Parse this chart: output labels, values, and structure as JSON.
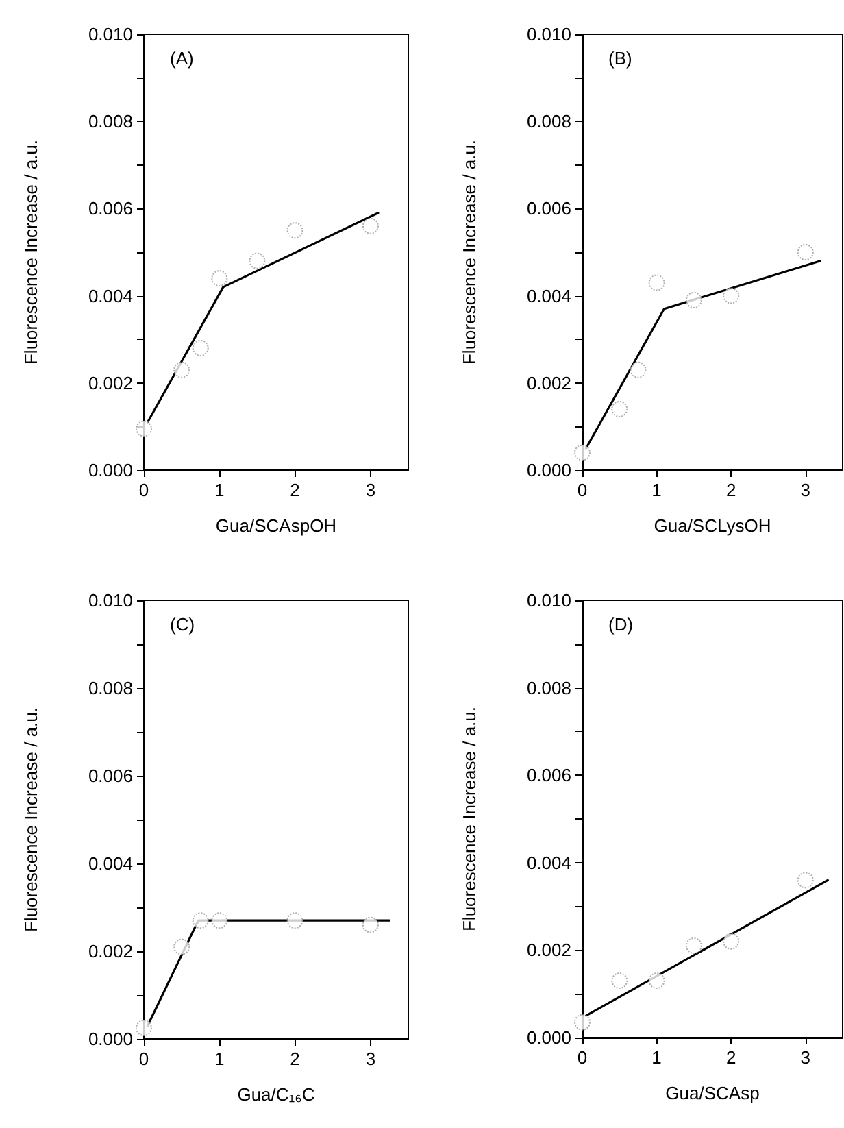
{
  "chart_data": [
    {
      "type": "scatter",
      "title": "(A)",
      "xlabel": "Gua/SCAspOH",
      "ylabel": "Fluorescence Increase / a.u.",
      "xlim": [
        0,
        3.5
      ],
      "xticks": [
        0,
        1,
        2,
        3
      ],
      "ylim": [
        0,
        0.01
      ],
      "yticks": [
        {
          "value": 0,
          "label": "0.000"
        },
        {
          "value": 0.001,
          "label": null
        },
        {
          "value": 0.002,
          "label": "0.002"
        },
        {
          "value": 0.003,
          "label": null
        },
        {
          "value": 0.004,
          "label": "0.004"
        },
        {
          "value": 0.005,
          "label": null
        },
        {
          "value": 0.006,
          "label": "0.006"
        },
        {
          "value": 0.007,
          "label": null
        },
        {
          "value": 0.008,
          "label": "0.008"
        },
        {
          "value": 0.009,
          "label": null
        },
        {
          "value": 0.01,
          "label": "0.010"
        }
      ],
      "grid": false,
      "series": [
        {
          "marker": "circle",
          "color": "#999999",
          "x": [
            0,
            0.5,
            0.75,
            1,
            1.5,
            2,
            3
          ],
          "values": [
            0.00095,
            0.0023,
            0.0028,
            0.0044,
            0.0048,
            0.0055,
            0.0056
          ]
        },
        {
          "type": "line",
          "marker": "none",
          "line_style": "solid",
          "color": "#000000",
          "x": [
            0.05,
            1.05,
            3.1
          ],
          "values": [
            0.0011,
            0.0042,
            0.0059
          ]
        }
      ]
    },
    {
      "type": "scatter",
      "title": "(B)",
      "xlabel": "Gua/SCLysOH",
      "ylabel": "Fluorescence Increase / a.u.",
      "xlim": [
        0,
        3.5
      ],
      "xticks": [
        0,
        1,
        2,
        3
      ],
      "ylim": [
        0,
        0.01
      ],
      "yticks": [
        {
          "value": 0,
          "label": "0.000"
        },
        {
          "value": 0.001,
          "label": null
        },
        {
          "value": 0.002,
          "label": "0.002"
        },
        {
          "value": 0.003,
          "label": null
        },
        {
          "value": 0.004,
          "label": "0.004"
        },
        {
          "value": 0.005,
          "label": null
        },
        {
          "value": 0.006,
          "label": "0.006"
        },
        {
          "value": 0.007,
          "label": null
        },
        {
          "value": 0.008,
          "label": "0.008"
        },
        {
          "value": 0.009,
          "label": null
        },
        {
          "value": 0.01,
          "label": "0.010"
        }
      ],
      "grid": false,
      "series": [
        {
          "marker": "circle",
          "color": "#999999",
          "x": [
            0,
            0.5,
            0.75,
            1,
            1.5,
            2,
            3
          ],
          "values": [
            0.0004,
            0.0014,
            0.0023,
            0.0043,
            0.0039,
            0.004,
            0.005
          ]
        },
        {
          "type": "line",
          "marker": "none",
          "line_style": "solid",
          "color": "#000000",
          "x": [
            0.05,
            1.1,
            3.2
          ],
          "values": [
            0.0005,
            0.0037,
            0.0048
          ]
        }
      ]
    },
    {
      "type": "scatter",
      "title": "(C)",
      "xlabel": "Gua/C₁₆C",
      "ylabel": "Fluorescence Increase / a.u.",
      "xlim": [
        0,
        3.5
      ],
      "xticks": [
        0,
        1,
        2,
        3
      ],
      "ylim": [
        0,
        0.01
      ],
      "yticks": [
        {
          "value": 0,
          "label": "0.000"
        },
        {
          "value": 0.001,
          "label": null
        },
        {
          "value": 0.002,
          "label": "0.002"
        },
        {
          "value": 0.003,
          "label": null
        },
        {
          "value": 0.004,
          "label": "0.004"
        },
        {
          "value": 0.005,
          "label": null
        },
        {
          "value": 0.006,
          "label": "0.006"
        },
        {
          "value": 0.007,
          "label": null
        },
        {
          "value": 0.008,
          "label": "0.008"
        },
        {
          "value": 0.009,
          "label": null
        },
        {
          "value": 0.01,
          "label": "0.010"
        }
      ],
      "grid": false,
      "series": [
        {
          "marker": "circle",
          "color": "#999999",
          "x": [
            0,
            0.5,
            0.75,
            1,
            2,
            3
          ],
          "values": [
            0.00025,
            0.0021,
            0.0027,
            0.0027,
            0.0027,
            0.0026
          ]
        },
        {
          "type": "line",
          "marker": "none",
          "line_style": "solid",
          "color": "#000000",
          "x": [
            0.05,
            0.72,
            3.25
          ],
          "values": [
            0.0003,
            0.0027,
            0.0027
          ]
        }
      ]
    },
    {
      "type": "scatter",
      "title": "(D)",
      "xlabel": "Gua/SCAsp",
      "ylabel": "Fluorescence Increase / a.u.",
      "xlim": [
        0,
        3.5
      ],
      "xticks": [
        0,
        1,
        2,
        3
      ],
      "ylim": [
        0,
        0.01
      ],
      "yticks": [
        {
          "value": 0,
          "label": "0.000"
        },
        {
          "value": 0.001,
          "label": null
        },
        {
          "value": 0.002,
          "label": "0.002"
        },
        {
          "value": 0.003,
          "label": null
        },
        {
          "value": 0.004,
          "label": "0.004"
        },
        {
          "value": 0.005,
          "label": null
        },
        {
          "value": 0.006,
          "label": "0.006"
        },
        {
          "value": 0.007,
          "label": null
        },
        {
          "value": 0.008,
          "label": "0.008"
        },
        {
          "value": 0.009,
          "label": null
        },
        {
          "value": 0.01,
          "label": "0.010"
        }
      ],
      "grid": false,
      "series": [
        {
          "marker": "circle",
          "color": "#999999",
          "x": [
            0,
            0.5,
            1,
            1.5,
            2,
            3
          ],
          "values": [
            0.00035,
            0.0013,
            0.0013,
            0.0021,
            0.0022,
            0.0036
          ]
        },
        {
          "type": "line",
          "marker": "none",
          "line_style": "solid",
          "color": "#000000",
          "x": [
            0.05,
            3.3
          ],
          "values": [
            0.0005,
            0.0036
          ]
        }
      ]
    }
  ]
}
